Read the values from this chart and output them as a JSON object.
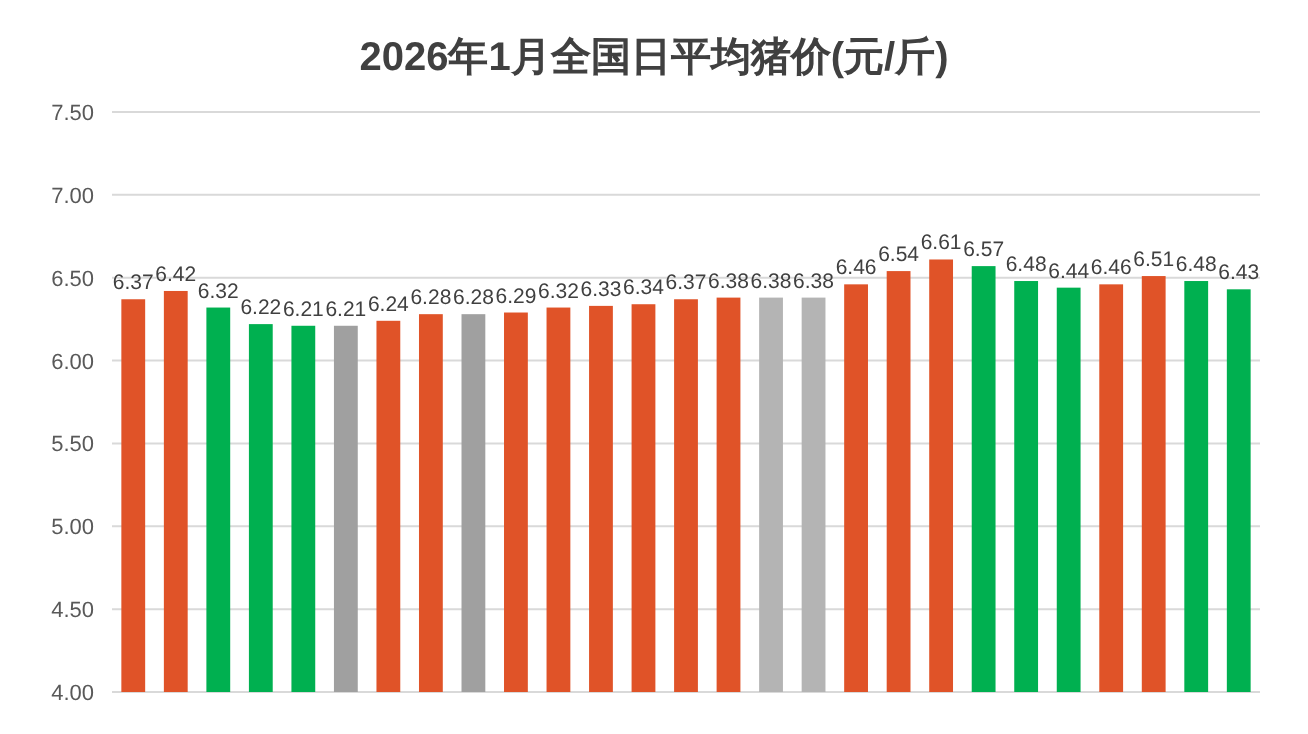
{
  "chart_data": {
    "type": "bar",
    "title": "2026年1月全国日平均猪价(元/斤)",
    "categories": [
      null,
      null,
      null,
      null,
      null,
      null,
      null,
      null,
      null,
      null,
      null,
      null,
      null,
      null,
      null,
      null,
      null,
      null,
      null,
      null,
      null,
      null,
      null,
      null,
      null,
      null,
      null
    ],
    "values": [
      6.37,
      6.42,
      6.32,
      6.22,
      6.21,
      6.21,
      6.24,
      6.28,
      6.28,
      6.29,
      6.32,
      6.33,
      6.34,
      6.37,
      6.38,
      6.38,
      6.38,
      6.46,
      6.54,
      6.61,
      6.57,
      6.48,
      6.44,
      6.46,
      6.51,
      6.48,
      6.43
    ],
    "colors": [
      "#e05328",
      "#e05328",
      "#00b050",
      "#00b050",
      "#00b050",
      "#a0a0a0",
      "#e05328",
      "#e05328",
      "#a0a0a0",
      "#e05328",
      "#e05328",
      "#e05328",
      "#e05328",
      "#e05328",
      "#e05328",
      "#b4b4b4",
      "#b4b4b4",
      "#e05328",
      "#e05328",
      "#e05328",
      "#00b050",
      "#00b050",
      "#00b050",
      "#e05328",
      "#e05328",
      "#00b050",
      "#00b050"
    ],
    "ylim": [
      4,
      7.5
    ],
    "yticks": [
      {
        "value": 4,
        "label": "4.00"
      },
      {
        "value": 4.5,
        "label": "4.50"
      },
      {
        "value": 5,
        "label": "5.00"
      },
      {
        "value": 5.5,
        "label": "5.50"
      },
      {
        "value": 6,
        "label": "6.00"
      },
      {
        "value": 6.5,
        "label": "6.50"
      },
      {
        "value": 7,
        "label": "7.00"
      },
      {
        "value": 7.5,
        "label": "7.50"
      }
    ],
    "grid": "y",
    "data_labels": true
  }
}
